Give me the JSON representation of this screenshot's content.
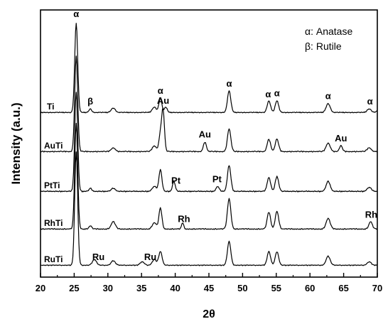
{
  "chart_data": {
    "type": "line",
    "xlabel": "2θ",
    "ylabel": "Intensity (a.u.)",
    "xlim": [
      20,
      70
    ],
    "x_ticks": [
      "20",
      "25",
      "30",
      "35",
      "40",
      "45",
      "50",
      "55",
      "60",
      "65",
      "70"
    ],
    "y_ticks_shown": false,
    "grid": false,
    "legend_position": "top-right",
    "legend": [
      "α: Anatase",
      "β: Rutile"
    ],
    "line_color": "#000000",
    "series": [
      {
        "name": "Ti",
        "peaks": [
          {
            "x": 25.3,
            "h": 1.0,
            "w": 0.22
          },
          {
            "x": 27.4,
            "h": 0.04,
            "w": 0.2
          },
          {
            "x": 30.8,
            "h": 0.05,
            "w": 0.3
          },
          {
            "x": 36.9,
            "h": 0.06,
            "w": 0.3
          },
          {
            "x": 37.8,
            "h": 0.16,
            "w": 0.22
          },
          {
            "x": 38.6,
            "h": 0.06,
            "w": 0.2
          },
          {
            "x": 48.0,
            "h": 0.24,
            "w": 0.25
          },
          {
            "x": 53.9,
            "h": 0.13,
            "w": 0.25
          },
          {
            "x": 55.1,
            "h": 0.13,
            "w": 0.25
          },
          {
            "x": 62.7,
            "h": 0.1,
            "w": 0.3
          },
          {
            "x": 68.8,
            "h": 0.04,
            "w": 0.3
          },
          {
            "x": 70.3,
            "h": 0.04,
            "w": 0.3
          }
        ]
      },
      {
        "name": "AuTi",
        "peaks": [
          {
            "x": 25.3,
            "h": 1.0,
            "w": 0.22
          },
          {
            "x": 30.8,
            "h": 0.04,
            "w": 0.3
          },
          {
            "x": 36.9,
            "h": 0.06,
            "w": 0.3
          },
          {
            "x": 37.8,
            "h": 0.18,
            "w": 0.22
          },
          {
            "x": 38.2,
            "h": 0.42,
            "w": 0.2
          },
          {
            "x": 44.4,
            "h": 0.1,
            "w": 0.22
          },
          {
            "x": 48.0,
            "h": 0.24,
            "w": 0.25
          },
          {
            "x": 53.9,
            "h": 0.13,
            "w": 0.25
          },
          {
            "x": 55.1,
            "h": 0.13,
            "w": 0.25
          },
          {
            "x": 62.7,
            "h": 0.09,
            "w": 0.3
          },
          {
            "x": 64.6,
            "h": 0.06,
            "w": 0.22
          },
          {
            "x": 68.8,
            "h": 0.04,
            "w": 0.3
          }
        ]
      },
      {
        "name": "PtTi",
        "peaks": [
          {
            "x": 25.3,
            "h": 1.0,
            "w": 0.22
          },
          {
            "x": 27.4,
            "h": 0.03,
            "w": 0.2
          },
          {
            "x": 30.8,
            "h": 0.03,
            "w": 0.3
          },
          {
            "x": 36.9,
            "h": 0.05,
            "w": 0.3
          },
          {
            "x": 37.8,
            "h": 0.22,
            "w": 0.22
          },
          {
            "x": 39.8,
            "h": 0.1,
            "w": 0.2
          },
          {
            "x": 46.3,
            "h": 0.05,
            "w": 0.22
          },
          {
            "x": 48.0,
            "h": 0.26,
            "w": 0.25
          },
          {
            "x": 53.9,
            "h": 0.14,
            "w": 0.25
          },
          {
            "x": 55.1,
            "h": 0.15,
            "w": 0.25
          },
          {
            "x": 62.7,
            "h": 0.1,
            "w": 0.3
          },
          {
            "x": 68.8,
            "h": 0.04,
            "w": 0.3
          }
        ]
      },
      {
        "name": "RhTi",
        "peaks": [
          {
            "x": 25.3,
            "h": 1.0,
            "w": 0.22
          },
          {
            "x": 27.4,
            "h": 0.03,
            "w": 0.2
          },
          {
            "x": 30.8,
            "h": 0.07,
            "w": 0.3
          },
          {
            "x": 36.9,
            "h": 0.06,
            "w": 0.3
          },
          {
            "x": 37.8,
            "h": 0.2,
            "w": 0.22
          },
          {
            "x": 41.1,
            "h": 0.06,
            "w": 0.15
          },
          {
            "x": 48.0,
            "h": 0.29,
            "w": 0.25
          },
          {
            "x": 53.9,
            "h": 0.16,
            "w": 0.25
          },
          {
            "x": 55.1,
            "h": 0.17,
            "w": 0.25
          },
          {
            "x": 62.7,
            "h": 0.1,
            "w": 0.3
          },
          {
            "x": 69.0,
            "h": 0.07,
            "w": 0.25
          }
        ]
      },
      {
        "name": "RuTi",
        "peaks": [
          {
            "x": 25.3,
            "h": 1.0,
            "w": 0.22
          },
          {
            "x": 28.0,
            "h": 0.05,
            "w": 0.3
          },
          {
            "x": 30.8,
            "h": 0.04,
            "w": 0.3
          },
          {
            "x": 35.1,
            "h": 0.03,
            "w": 0.3
          },
          {
            "x": 36.9,
            "h": 0.05,
            "w": 0.3
          },
          {
            "x": 37.8,
            "h": 0.12,
            "w": 0.25
          },
          {
            "x": 48.0,
            "h": 0.21,
            "w": 0.25
          },
          {
            "x": 53.9,
            "h": 0.12,
            "w": 0.25
          },
          {
            "x": 55.1,
            "h": 0.12,
            "w": 0.25
          },
          {
            "x": 62.7,
            "h": 0.08,
            "w": 0.3
          },
          {
            "x": 68.8,
            "h": 0.03,
            "w": 0.3
          }
        ]
      }
    ],
    "annotations": [
      {
        "text": "α",
        "series": "Ti",
        "x": 25.3
      },
      {
        "text": "β",
        "series": "Ti",
        "x": 27.4
      },
      {
        "text": "α",
        "series": "Ti",
        "x": 37.8
      },
      {
        "text": "α",
        "series": "Ti",
        "x": 48.0
      },
      {
        "text": "α",
        "series": "Ti",
        "x": 53.8
      },
      {
        "text": "α",
        "series": "Ti",
        "x": 55.1
      },
      {
        "text": "α",
        "series": "Ti",
        "x": 62.7
      },
      {
        "text": "α",
        "series": "Ti",
        "x": 68.9
      },
      {
        "text": "Au",
        "series": "AuTi",
        "x": 38.2
      },
      {
        "text": "Au",
        "series": "AuTi",
        "x": 44.4
      },
      {
        "text": "Au",
        "series": "AuTi",
        "x": 64.6
      },
      {
        "text": "Pt",
        "series": "PtTi",
        "x": 40.1
      },
      {
        "text": "Pt",
        "series": "PtTi",
        "x": 46.2
      },
      {
        "text": "Rh",
        "series": "RhTi",
        "x": 41.3
      },
      {
        "text": "Rh",
        "series": "RhTi",
        "x": 69.1
      },
      {
        "text": "Ru",
        "series": "RuTi",
        "x": 28.6
      },
      {
        "text": "Ru",
        "series": "RuTi",
        "x": 36.3
      }
    ]
  }
}
